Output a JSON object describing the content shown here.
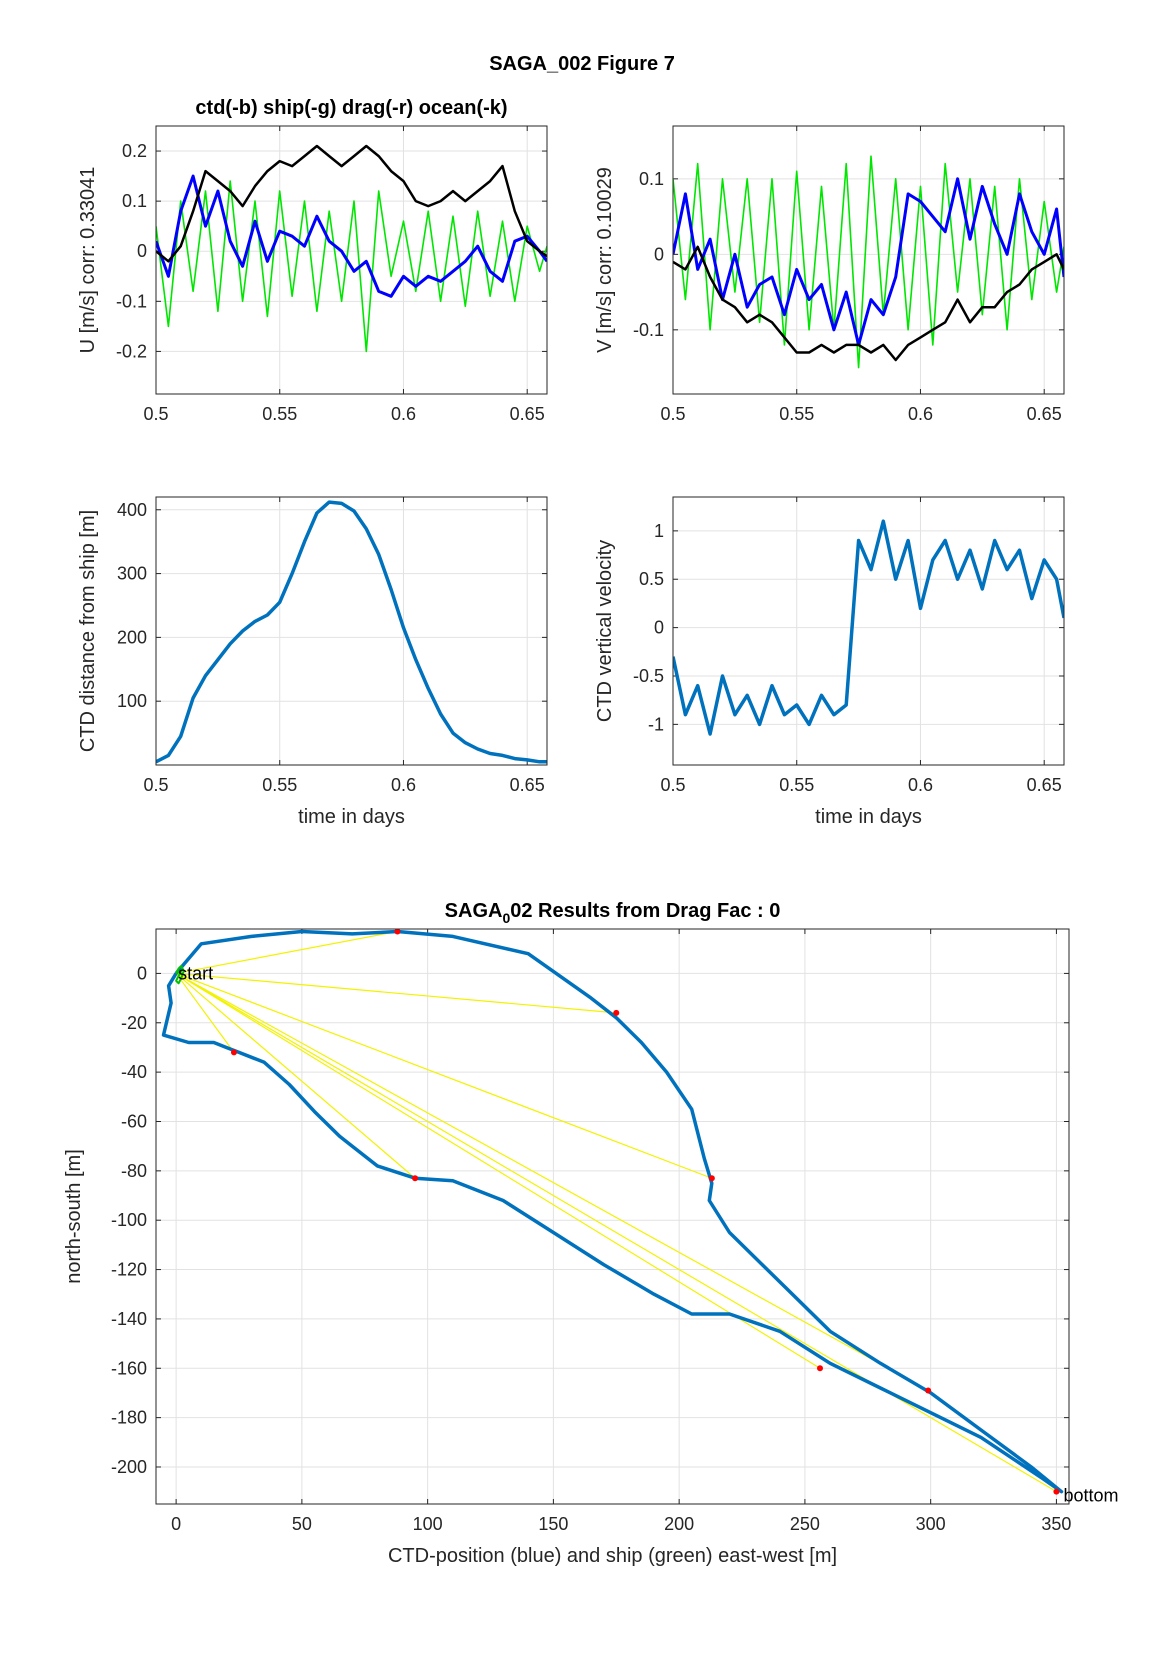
{
  "figure": {
    "suptitle": "SAGA_002  Figure 7"
  },
  "chart_data": [
    {
      "type": "line",
      "title": "ctd(-b) ship(-g) drag(-r) ocean(-k)",
      "ylabel": "U [m/s] corr: 0.33041",
      "xlabel": "",
      "xlim": [
        0.5,
        0.658
      ],
      "ylim": [
        -0.285,
        0.25
      ],
      "xticks": [
        "0.5",
        "0.55",
        "0.6",
        "0.65"
      ],
      "yticks": [
        "-0.2",
        "-0.1",
        "0",
        "0.1",
        "0.2"
      ],
      "grid": true,
      "colors": {
        "ctd": "#0000ff",
        "ship": "#00e600",
        "ocean": "#000000"
      },
      "series": [
        {
          "key": "ocean",
          "x": [
            0.5,
            0.505,
            0.51,
            0.515,
            0.52,
            0.525,
            0.53,
            0.535,
            0.54,
            0.545,
            0.55,
            0.555,
            0.56,
            0.565,
            0.57,
            0.575,
            0.58,
            0.585,
            0.59,
            0.595,
            0.6,
            0.605,
            0.61,
            0.615,
            0.62,
            0.625,
            0.63,
            0.635,
            0.64,
            0.645,
            0.65,
            0.655,
            0.658
          ],
          "values": [
            0.0,
            -0.02,
            0.01,
            0.08,
            0.16,
            0.14,
            0.12,
            0.09,
            0.13,
            0.16,
            0.18,
            0.17,
            0.19,
            0.21,
            0.19,
            0.17,
            0.19,
            0.21,
            0.19,
            0.16,
            0.14,
            0.1,
            0.09,
            0.1,
            0.12,
            0.1,
            0.12,
            0.14,
            0.17,
            0.08,
            0.02,
            0.0,
            -0.01
          ]
        },
        {
          "key": "ctd",
          "x": [
            0.5,
            0.505,
            0.51,
            0.515,
            0.52,
            0.525,
            0.53,
            0.535,
            0.54,
            0.545,
            0.55,
            0.555,
            0.56,
            0.565,
            0.57,
            0.575,
            0.58,
            0.585,
            0.59,
            0.595,
            0.6,
            0.605,
            0.61,
            0.615,
            0.62,
            0.625,
            0.63,
            0.635,
            0.64,
            0.645,
            0.65,
            0.655,
            0.658
          ],
          "values": [
            0.02,
            -0.05,
            0.08,
            0.15,
            0.05,
            0.12,
            0.02,
            -0.03,
            0.06,
            -0.02,
            0.04,
            0.03,
            0.01,
            0.07,
            0.02,
            0.0,
            -0.04,
            -0.02,
            -0.08,
            -0.09,
            -0.05,
            -0.07,
            -0.05,
            -0.06,
            -0.04,
            -0.02,
            0.01,
            -0.04,
            -0.06,
            0.02,
            0.03,
            0.0,
            -0.02
          ]
        },
        {
          "key": "ship",
          "x": [
            0.5,
            0.505,
            0.51,
            0.515,
            0.52,
            0.525,
            0.53,
            0.535,
            0.54,
            0.545,
            0.55,
            0.555,
            0.56,
            0.565,
            0.57,
            0.575,
            0.58,
            0.585,
            0.59,
            0.595,
            0.6,
            0.605,
            0.61,
            0.615,
            0.62,
            0.625,
            0.63,
            0.635,
            0.64,
            0.645,
            0.65,
            0.655,
            0.658
          ],
          "values": [
            0.05,
            -0.15,
            0.1,
            -0.08,
            0.12,
            -0.12,
            0.14,
            -0.1,
            0.1,
            -0.13,
            0.12,
            -0.09,
            0.1,
            -0.12,
            0.08,
            -0.1,
            0.1,
            -0.2,
            0.12,
            -0.05,
            0.06,
            -0.08,
            0.08,
            -0.1,
            0.07,
            -0.11,
            0.08,
            -0.09,
            0.06,
            -0.1,
            0.05,
            -0.04,
            0.01
          ]
        }
      ]
    },
    {
      "type": "line",
      "title": "",
      "ylabel": "V [m/s] corr: 0.10029",
      "xlabel": "",
      "xlim": [
        0.5,
        0.658
      ],
      "ylim": [
        -0.185,
        0.17
      ],
      "xticks": [
        "0.5",
        "0.55",
        "0.6",
        "0.65"
      ],
      "yticks": [
        "-0.1",
        "0",
        "0.1"
      ],
      "grid": true,
      "colors": {
        "ctd": "#0000ff",
        "ship": "#00e600",
        "ocean": "#000000"
      },
      "series": [
        {
          "key": "ocean",
          "x": [
            0.5,
            0.505,
            0.51,
            0.515,
            0.52,
            0.525,
            0.53,
            0.535,
            0.54,
            0.545,
            0.55,
            0.555,
            0.56,
            0.565,
            0.57,
            0.575,
            0.58,
            0.585,
            0.59,
            0.595,
            0.6,
            0.605,
            0.61,
            0.615,
            0.62,
            0.625,
            0.63,
            0.635,
            0.64,
            0.645,
            0.65,
            0.655,
            0.658
          ],
          "values": [
            -0.01,
            -0.02,
            0.01,
            -0.03,
            -0.06,
            -0.07,
            -0.09,
            -0.08,
            -0.09,
            -0.11,
            -0.13,
            -0.13,
            -0.12,
            -0.13,
            -0.12,
            -0.12,
            -0.13,
            -0.12,
            -0.14,
            -0.12,
            -0.11,
            -0.1,
            -0.09,
            -0.06,
            -0.09,
            -0.07,
            -0.07,
            -0.05,
            -0.04,
            -0.02,
            -0.01,
            0.0,
            -0.02
          ]
        },
        {
          "key": "ctd",
          "x": [
            0.5,
            0.505,
            0.51,
            0.515,
            0.52,
            0.525,
            0.53,
            0.535,
            0.54,
            0.545,
            0.55,
            0.555,
            0.56,
            0.565,
            0.57,
            0.575,
            0.58,
            0.585,
            0.59,
            0.595,
            0.6,
            0.605,
            0.61,
            0.615,
            0.62,
            0.625,
            0.63,
            0.635,
            0.64,
            0.645,
            0.65,
            0.655,
            0.658
          ],
          "values": [
            0.0,
            0.08,
            -0.02,
            0.02,
            -0.06,
            0.0,
            -0.07,
            -0.04,
            -0.03,
            -0.08,
            -0.02,
            -0.06,
            -0.04,
            -0.1,
            -0.05,
            -0.12,
            -0.06,
            -0.08,
            -0.03,
            0.08,
            0.07,
            0.05,
            0.03,
            0.1,
            0.02,
            0.09,
            0.04,
            0.0,
            0.08,
            0.03,
            0.0,
            0.06,
            -0.03
          ]
        },
        {
          "key": "ship",
          "x": [
            0.5,
            0.505,
            0.51,
            0.515,
            0.52,
            0.525,
            0.53,
            0.535,
            0.54,
            0.545,
            0.55,
            0.555,
            0.56,
            0.565,
            0.57,
            0.575,
            0.58,
            0.585,
            0.59,
            0.595,
            0.6,
            0.605,
            0.61,
            0.615,
            0.62,
            0.625,
            0.63,
            0.635,
            0.64,
            0.645,
            0.65,
            0.655,
            0.658
          ],
          "values": [
            0.1,
            -0.06,
            0.12,
            -0.1,
            0.1,
            -0.05,
            0.1,
            -0.09,
            0.1,
            -0.12,
            0.11,
            -0.1,
            0.09,
            -0.1,
            0.12,
            -0.15,
            0.13,
            -0.08,
            0.1,
            -0.1,
            0.09,
            -0.12,
            0.12,
            -0.05,
            0.1,
            -0.08,
            0.09,
            -0.1,
            0.1,
            -0.06,
            0.07,
            -0.05,
            0.01
          ]
        }
      ]
    },
    {
      "type": "line",
      "title": "",
      "ylabel": "CTD distance from ship [m]",
      "xlabel": "time in days",
      "xlim": [
        0.5,
        0.658
      ],
      "ylim": [
        0,
        420
      ],
      "xticks": [
        "0.5",
        "0.55",
        "0.6",
        "0.65"
      ],
      "yticks": [
        "100",
        "200",
        "300",
        "400"
      ],
      "grid": true,
      "colors": {
        "line": "#0072bd"
      },
      "series": [
        {
          "key": "distance",
          "x": [
            0.5,
            0.505,
            0.51,
            0.515,
            0.52,
            0.525,
            0.53,
            0.535,
            0.54,
            0.545,
            0.55,
            0.555,
            0.56,
            0.565,
            0.57,
            0.575,
            0.58,
            0.585,
            0.59,
            0.595,
            0.6,
            0.605,
            0.61,
            0.615,
            0.62,
            0.625,
            0.63,
            0.635,
            0.64,
            0.645,
            0.65,
            0.655,
            0.658
          ],
          "values": [
            5,
            15,
            45,
            105,
            140,
            165,
            190,
            210,
            225,
            235,
            255,
            300,
            350,
            395,
            412,
            410,
            398,
            370,
            330,
            275,
            215,
            165,
            120,
            80,
            50,
            35,
            25,
            18,
            15,
            10,
            8,
            5,
            5
          ]
        }
      ]
    },
    {
      "type": "line",
      "title": "",
      "ylabel": "CTD vertical velocity",
      "xlabel": "time in days",
      "xlim": [
        0.5,
        0.658
      ],
      "ylim": [
        -1.42,
        1.35
      ],
      "xticks": [
        "0.5",
        "0.55",
        "0.6",
        "0.65"
      ],
      "yticks": [
        "-1",
        "-0.5",
        "0",
        "0.5",
        "1"
      ],
      "grid": true,
      "colors": {
        "line": "#0072bd"
      },
      "series": [
        {
          "key": "vertical_velocity",
          "x": [
            0.5,
            0.505,
            0.51,
            0.515,
            0.52,
            0.525,
            0.53,
            0.535,
            0.54,
            0.545,
            0.55,
            0.555,
            0.56,
            0.565,
            0.57,
            0.575,
            0.58,
            0.585,
            0.59,
            0.595,
            0.6,
            0.605,
            0.61,
            0.615,
            0.62,
            0.625,
            0.63,
            0.635,
            0.64,
            0.645,
            0.65,
            0.655,
            0.658
          ],
          "values": [
            -0.3,
            -0.9,
            -0.6,
            -1.1,
            -0.5,
            -0.9,
            -0.7,
            -1.0,
            -0.6,
            -0.9,
            -0.8,
            -1.0,
            -0.7,
            -0.9,
            -0.8,
            0.9,
            0.6,
            1.1,
            0.5,
            0.9,
            0.2,
            0.7,
            0.9,
            0.5,
            0.8,
            0.4,
            0.9,
            0.6,
            0.8,
            0.3,
            0.7,
            0.5,
            0.1
          ]
        }
      ]
    },
    {
      "type": "line",
      "title": "SAGA_002 Results from Drag Fac : 0",
      "title_main": "SAGA",
      "title_sub": "0",
      "title_rest": "02 Results from Drag Fac : 0",
      "ylabel": "north-south [m]",
      "xlabel": "CTD-position (blue) and ship (green) east-west [m]",
      "xlim": [
        -8,
        355
      ],
      "ylim": [
        -215,
        18
      ],
      "xticks": [
        "0",
        "50",
        "100",
        "150",
        "200",
        "250",
        "300",
        "350"
      ],
      "yticks": [
        "-200",
        "-180",
        "-160",
        "-140",
        "-120",
        "-100",
        "-80",
        "-60",
        "-40",
        "-20",
        "0"
      ],
      "grid": true,
      "annotations": [
        "start",
        "bottom"
      ],
      "colors": {
        "ctd": "#0072bd",
        "ship": "#00c000",
        "links": "#f2f200",
        "markers": "#ff0000"
      },
      "series": [
        {
          "key": "ctd_track",
          "x": [
            0,
            10,
            30,
            50,
            70,
            88,
            110,
            140,
            165,
            175,
            185,
            195,
            205,
            210,
            213,
            212,
            220,
            240,
            260,
            280,
            300,
            320,
            340,
            352,
            345,
            320,
            300,
            280,
            260,
            240,
            220,
            205,
            190,
            170,
            150,
            130,
            110,
            95,
            80,
            65,
            55,
            45,
            35,
            25,
            20,
            15,
            5,
            -5,
            -2,
            -3,
            0
          ],
          "values": [
            0,
            12,
            15,
            17,
            16,
            17,
            15,
            8,
            -10,
            -18,
            -28,
            -40,
            -55,
            -75,
            -85,
            -92,
            -105,
            -125,
            -145,
            -158,
            -170,
            -185,
            -200,
            -210,
            -205,
            -188,
            -178,
            -168,
            -158,
            -145,
            -138,
            -138,
            -130,
            -118,
            -105,
            -92,
            -84,
            -83,
            -78,
            -66,
            -56,
            -45,
            -36,
            -32,
            -30,
            -28,
            -28,
            -25,
            -12,
            -5,
            0
          ]
        },
        {
          "key": "ship_track",
          "x": [
            0,
            1,
            2,
            3,
            2,
            1,
            0,
            1,
            2,
            0
          ],
          "values": [
            0,
            2,
            3,
            1,
            -2,
            -4,
            -3,
            -1,
            1,
            0
          ]
        },
        {
          "key": "drag_points",
          "x": [
            88,
            175,
            213,
            95,
            23,
            256,
            299,
            350
          ],
          "values": [
            17,
            -16,
            -83,
            -83,
            -32,
            -160,
            -169,
            -210
          ]
        }
      ]
    }
  ]
}
